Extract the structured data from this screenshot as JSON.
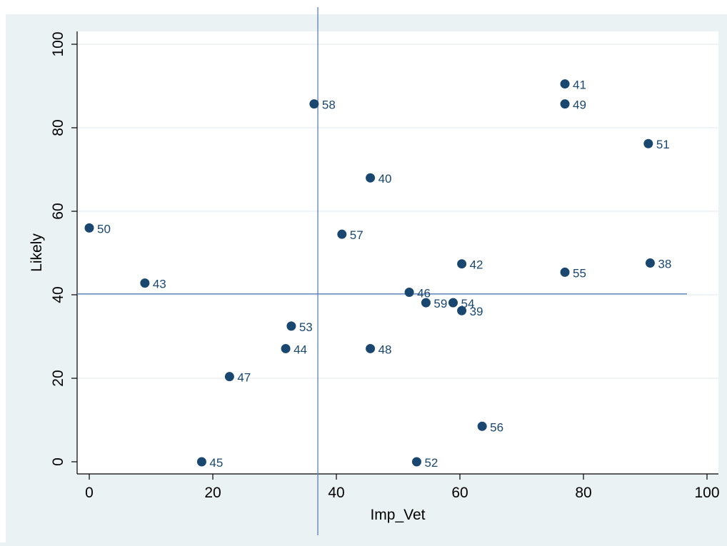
{
  "chart_data": {
    "type": "scatter",
    "title": "",
    "xlabel": "Imp_Vet",
    "ylabel": "Likely",
    "xlim": [
      0,
      100
    ],
    "ylim": [
      0,
      100
    ],
    "x_ticks": [
      0,
      20,
      40,
      60,
      80,
      100
    ],
    "y_ticks": [
      0,
      20,
      40,
      60,
      80,
      100
    ],
    "grid": "horizontal",
    "legend": "none",
    "reference_lines": {
      "x": 37,
      "y": 40.2
    },
    "colors": {
      "outer_background": "#eaf2f3",
      "plot_background": "#ffffff",
      "gridline": "#eaf2f3",
      "marker": "#1a476f",
      "reference_line": "#5a7fb8"
    },
    "points": [
      {
        "label": "38",
        "x": 90.8,
        "y": 47.6
      },
      {
        "label": "39",
        "x": 60.3,
        "y": 36.2
      },
      {
        "label": "40",
        "x": 45.5,
        "y": 68.0
      },
      {
        "label": "41",
        "x": 77.0,
        "y": 90.5
      },
      {
        "label": "42",
        "x": 60.3,
        "y": 47.4
      },
      {
        "label": "43",
        "x": 9.0,
        "y": 42.8
      },
      {
        "label": "44",
        "x": 31.8,
        "y": 27.1
      },
      {
        "label": "45",
        "x": 18.2,
        "y": 0.0
      },
      {
        "label": "46",
        "x": 51.8,
        "y": 40.6
      },
      {
        "label": "47",
        "x": 22.7,
        "y": 20.4
      },
      {
        "label": "48",
        "x": 45.5,
        "y": 27.1
      },
      {
        "label": "49",
        "x": 77.0,
        "y": 85.7
      },
      {
        "label": "50",
        "x": 0.0,
        "y": 56.0
      },
      {
        "label": "51",
        "x": 90.5,
        "y": 76.2
      },
      {
        "label": "52",
        "x": 53.0,
        "y": 0.0
      },
      {
        "label": "53",
        "x": 32.7,
        "y": 32.5
      },
      {
        "label": "54",
        "x": 58.9,
        "y": 38.1
      },
      {
        "label": "55",
        "x": 77.0,
        "y": 45.4
      },
      {
        "label": "56",
        "x": 63.6,
        "y": 8.5
      },
      {
        "label": "57",
        "x": 40.9,
        "y": 54.5
      },
      {
        "label": "58",
        "x": 36.4,
        "y": 85.7
      },
      {
        "label": "59",
        "x": 54.5,
        "y": 38.1
      }
    ]
  }
}
